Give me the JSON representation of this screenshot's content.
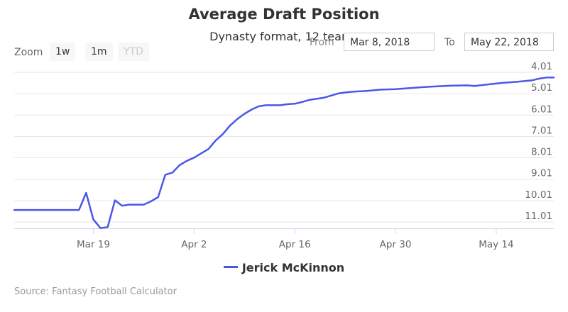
{
  "chart_data": {
    "type": "line",
    "title": "Average Draft Position",
    "subtitle": "Dynasty format, 12 teams",
    "x_tick_labels": [
      {
        "date": "2018-03-19",
        "label": "Mar 19"
      },
      {
        "date": "2018-04-02",
        "label": "Apr 2"
      },
      {
        "date": "2018-04-16",
        "label": "Apr 16"
      },
      {
        "date": "2018-04-30",
        "label": "Apr 30"
      },
      {
        "date": "2018-05-14",
        "label": "May 14"
      }
    ],
    "xlim": [
      "2018-03-08",
      "2018-05-22"
    ],
    "ylim": [
      11.31,
      3.81
    ],
    "y_reversed": true,
    "y_ticks": [
      4.01,
      5.01,
      6.01,
      7.01,
      8.01,
      9.01,
      10.01,
      11.01
    ],
    "y_tick_labels": [
      "4.01",
      "5.01",
      "6.01",
      "7.01",
      "8.01",
      "9.01",
      "10.01",
      "11.01"
    ],
    "grid": "horizontal",
    "legend_position": "bottom",
    "series": [
      {
        "name": "Jerick McKinnon",
        "color": "#4b57e8",
        "points": [
          [
            "2018-03-08",
            10.45
          ],
          [
            "2018-03-12",
            10.45
          ],
          [
            "2018-03-16",
            10.45
          ],
          [
            "2018-03-17",
            10.45
          ],
          [
            "2018-03-18",
            9.65
          ],
          [
            "2018-03-19",
            10.9
          ],
          [
            "2018-03-20",
            11.3
          ],
          [
            "2018-03-21",
            11.25
          ],
          [
            "2018-03-22",
            10.0
          ],
          [
            "2018-03-23",
            10.25
          ],
          [
            "2018-03-24",
            10.2
          ],
          [
            "2018-03-25",
            10.2
          ],
          [
            "2018-03-26",
            10.2
          ],
          [
            "2018-03-27",
            10.05
          ],
          [
            "2018-03-28",
            9.85
          ],
          [
            "2018-03-29",
            8.8
          ],
          [
            "2018-03-30",
            8.7
          ],
          [
            "2018-03-31",
            8.35
          ],
          [
            "2018-04-01",
            8.15
          ],
          [
            "2018-04-02",
            8.0
          ],
          [
            "2018-04-03",
            7.8
          ],
          [
            "2018-04-04",
            7.6
          ],
          [
            "2018-04-05",
            7.2
          ],
          [
            "2018-04-06",
            6.9
          ],
          [
            "2018-04-07",
            6.5
          ],
          [
            "2018-04-08",
            6.2
          ],
          [
            "2018-04-09",
            5.95
          ],
          [
            "2018-04-10",
            5.75
          ],
          [
            "2018-04-11",
            5.6
          ],
          [
            "2018-04-12",
            5.55
          ],
          [
            "2018-04-13",
            5.55
          ],
          [
            "2018-04-14",
            5.55
          ],
          [
            "2018-04-15",
            5.5
          ],
          [
            "2018-04-16",
            5.48
          ],
          [
            "2018-04-17",
            5.4
          ],
          [
            "2018-04-18",
            5.3
          ],
          [
            "2018-04-19",
            5.25
          ],
          [
            "2018-04-20",
            5.2
          ],
          [
            "2018-04-21",
            5.1
          ],
          [
            "2018-04-22",
            5.0
          ],
          [
            "2018-04-23",
            4.95
          ],
          [
            "2018-04-24",
            4.92
          ],
          [
            "2018-04-25",
            4.9
          ],
          [
            "2018-04-26",
            4.88
          ],
          [
            "2018-04-27",
            4.85
          ],
          [
            "2018-04-28",
            4.82
          ],
          [
            "2018-04-30",
            4.8
          ],
          [
            "2018-05-02",
            4.75
          ],
          [
            "2018-05-04",
            4.7
          ],
          [
            "2018-05-06",
            4.66
          ],
          [
            "2018-05-08",
            4.63
          ],
          [
            "2018-05-10",
            4.62
          ],
          [
            "2018-05-11",
            4.65
          ],
          [
            "2018-05-13",
            4.57
          ],
          [
            "2018-05-15",
            4.5
          ],
          [
            "2018-05-17",
            4.45
          ],
          [
            "2018-05-19",
            4.38
          ],
          [
            "2018-05-20",
            4.3
          ],
          [
            "2018-05-21",
            4.25
          ],
          [
            "2018-05-22",
            4.25
          ]
        ]
      }
    ]
  },
  "zoom": {
    "label": "Zoom",
    "buttons": [
      {
        "label": "1w",
        "enabled": true
      },
      {
        "label": "1m",
        "enabled": true
      },
      {
        "label": "YTD",
        "enabled": false
      }
    ]
  },
  "range": {
    "from_label": "From",
    "from_value": "Mar 8, 2018",
    "to_label": "To",
    "to_value": "May 22, 2018"
  },
  "source": "Source: Fantasy Football Calculator"
}
